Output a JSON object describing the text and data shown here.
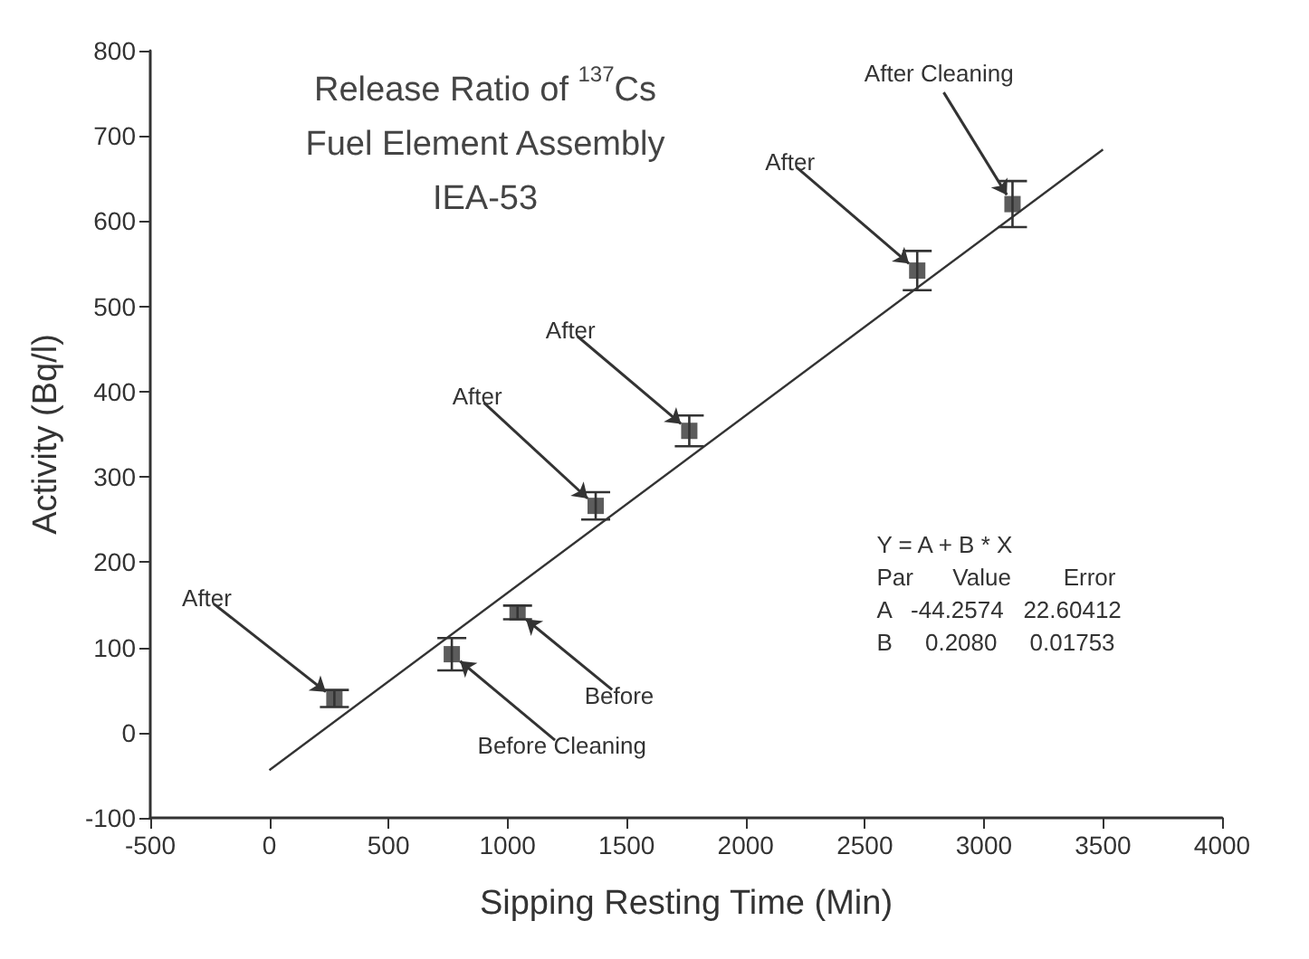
{
  "chart_data": {
    "type": "scatter",
    "title": "Release Ratio of $^{137}$Cs\nFuel Element Assembly\nIEA-53",
    "xlabel": "Sipping Resting Time (Min)",
    "ylabel": "Activity (Bq/l)",
    "series": [
      {
        "color": "#333333",
        "x": [
          273,
          766,
          1042,
          1370,
          1763,
          2720,
          3120
        ],
        "values": [
          40,
          92,
          141,
          266,
          354,
          542,
          620
        ],
        "errors": [
          10,
          19,
          8,
          16,
          18,
          23,
          27
        ],
        "marker": "square"
      },
      {
        "type": "line",
        "color": "#333333",
        "x": [
          0,
          3500
        ],
        "values": [
          -44,
          684
        ],
        "marker": "none",
        "line_style": "solid"
      }
    ],
    "xlim": [
      -500,
      4000
    ],
    "xticks": [
      -500,
      0,
      500,
      1000,
      1500,
      2000,
      2500,
      3000,
      3500,
      4000
    ],
    "ylim": [
      -100,
      800
    ],
    "yticks": [
      -100,
      0,
      100,
      200,
      300,
      400,
      500,
      600,
      700,
      800
    ],
    "grid": false,
    "annotations": [
      {
        "text": "After",
        "x": 273,
        "y": 40
      },
      {
        "text": "Before Cleaning",
        "x": 766,
        "y": 92
      },
      {
        "text": "Before",
        "x": 1042,
        "y": 141
      },
      {
        "text": "After",
        "x": 1370,
        "y": 266
      },
      {
        "text": "After",
        "x": 1763,
        "y": 354
      },
      {
        "text": "After",
        "x": 2720,
        "y": 542
      },
      {
        "text": "After Cleaning",
        "x": 3120,
        "y": 620
      },
      "Y = A + B * X",
      "Par      Value        Error",
      "A   -44.2574   22.60412",
      "B     0.2080     0.01753"
    ]
  }
}
